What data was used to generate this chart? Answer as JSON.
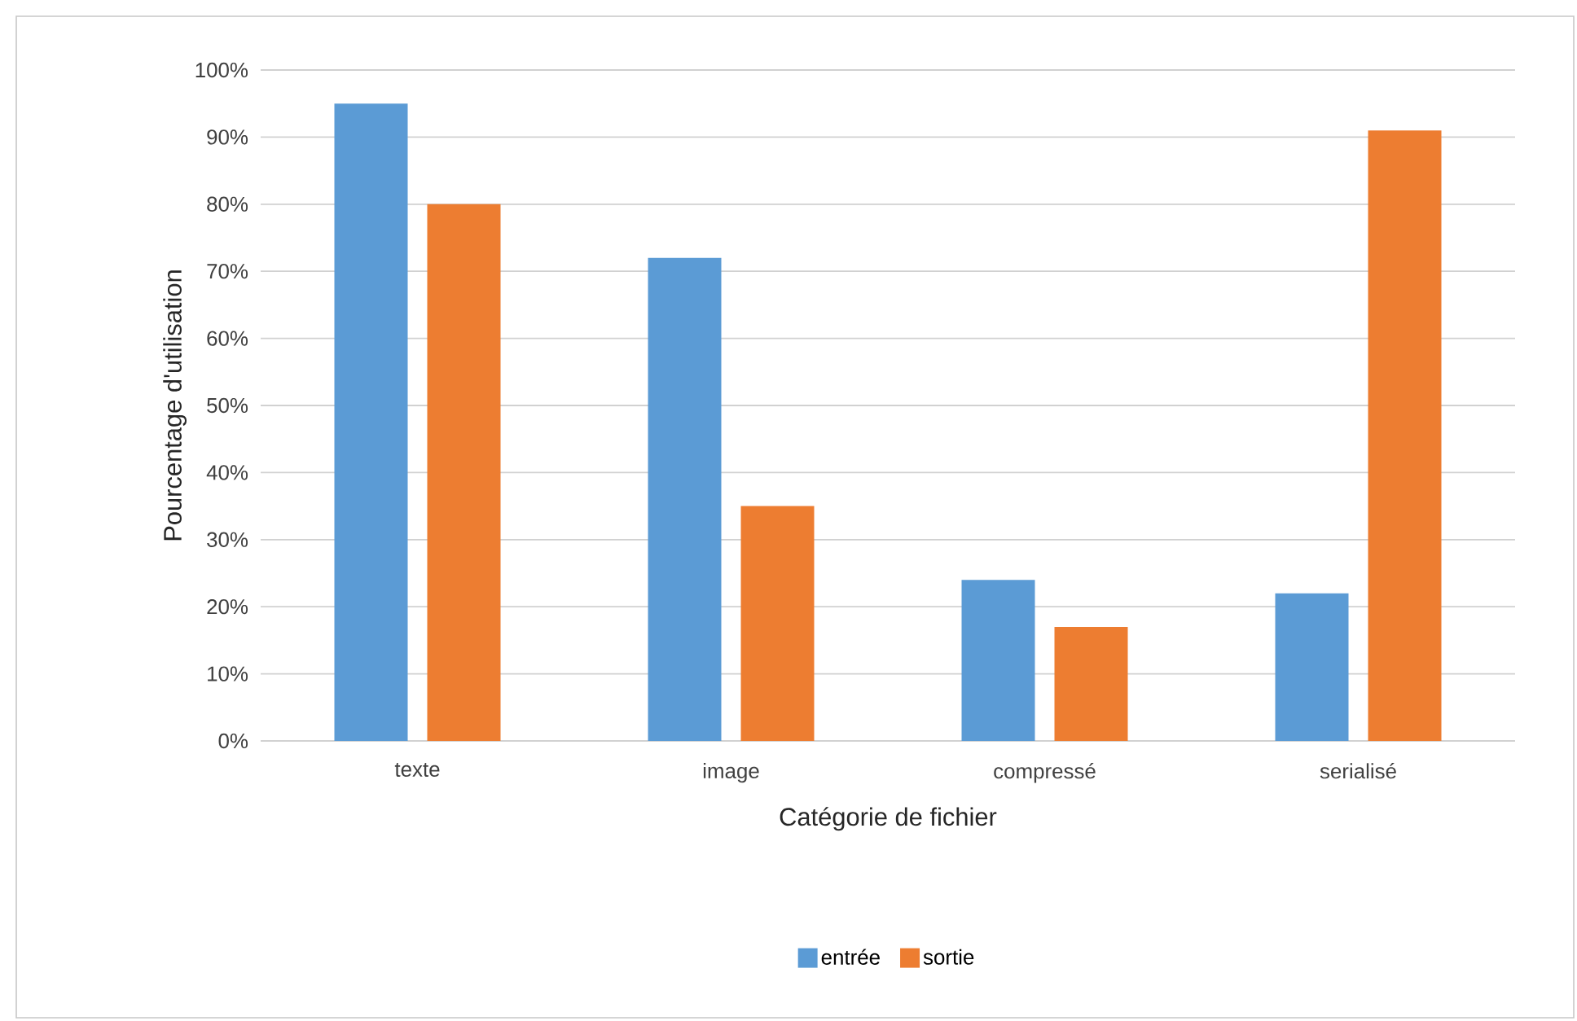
{
  "chart_data": {
    "type": "bar",
    "xlabel": "Catégorie de fichier",
    "ylabel": "Pourcentage d'utilisation",
    "categories": [
      "texte",
      "image",
      "compressé",
      "serialisé"
    ],
    "series": [
      {
        "name": "entrée",
        "color": "#5b9bd5",
        "values": [
          95,
          72,
          24,
          22
        ]
      },
      {
        "name": "sortie",
        "color": "#ed7d31",
        "values": [
          80,
          35,
          17,
          91
        ]
      }
    ],
    "ylim": [
      0,
      100
    ],
    "yticks": [
      {
        "value": 0,
        "label": "0%"
      },
      {
        "value": 10,
        "label": "10%"
      },
      {
        "value": 20,
        "label": "20%"
      },
      {
        "value": 30,
        "label": "30%"
      },
      {
        "value": 40,
        "label": "40%"
      },
      {
        "value": 50,
        "label": "50%"
      },
      {
        "value": 60,
        "label": "60%"
      },
      {
        "value": 70,
        "label": "70%"
      },
      {
        "value": 80,
        "label": "80%"
      },
      {
        "value": 90,
        "label": "90%"
      },
      {
        "value": 100,
        "label": "100%"
      }
    ],
    "grid": "y",
    "legend": "bottom"
  }
}
